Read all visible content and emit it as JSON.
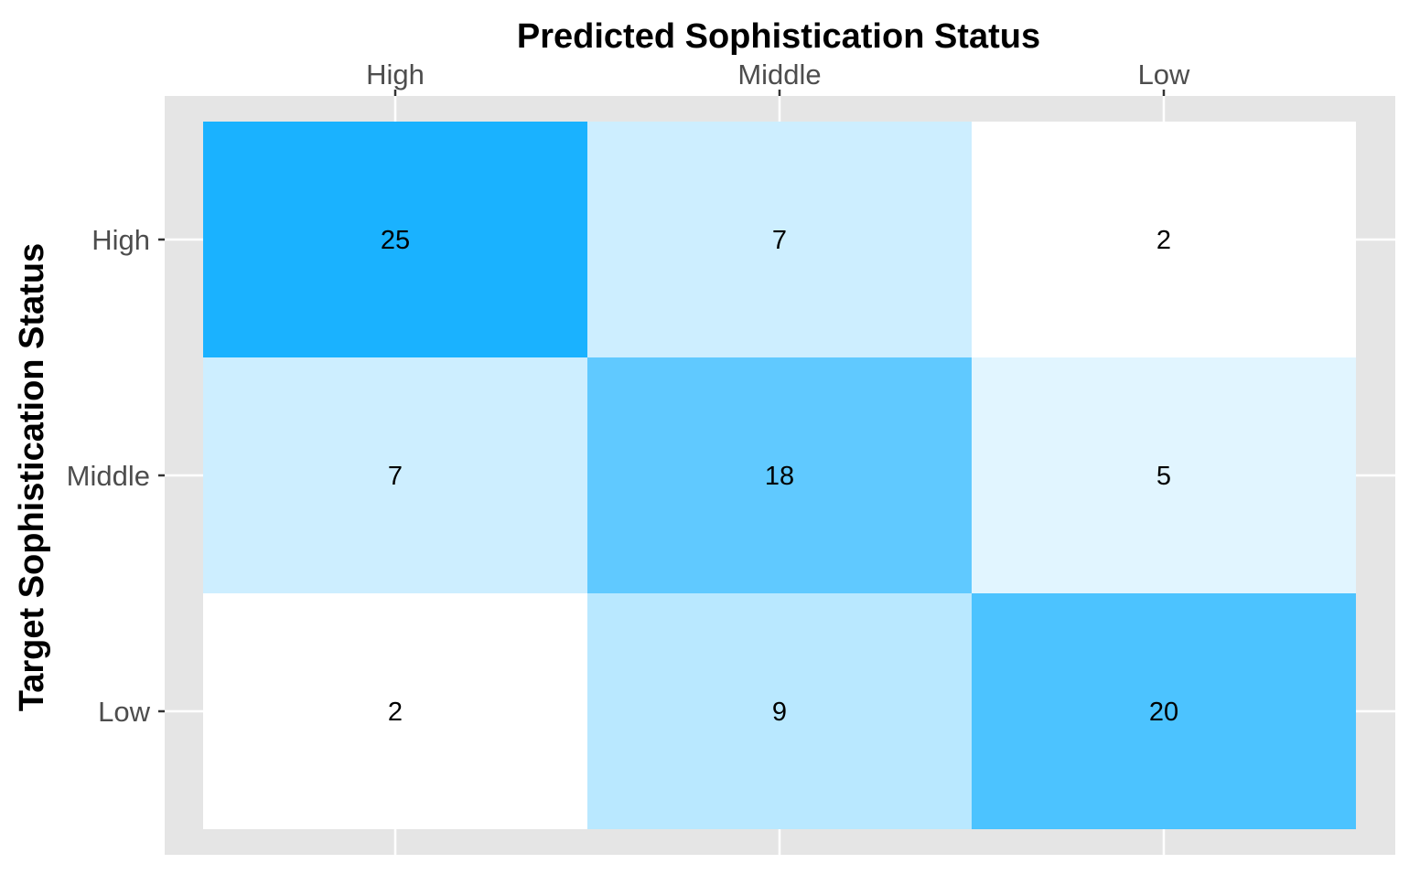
{
  "chart_data": {
    "type": "heatmap",
    "x_title": "Predicted Sophistication Status",
    "y_title": "Target Sophistication Status",
    "x_categories": [
      "High",
      "Middle",
      "Low"
    ],
    "y_categories": [
      "High",
      "Middle",
      "Low"
    ],
    "x_axis_position": "top",
    "values": [
      [
        25,
        7,
        2
      ],
      [
        7,
        18,
        5
      ],
      [
        2,
        9,
        20
      ]
    ],
    "colors": {
      "low": "#ffffff",
      "high": "#1ab2ff",
      "panel_background": "#e5e5e5",
      "grid": "#ffffff",
      "tick_label": "#4d4d4d",
      "title": "#000000"
    },
    "grid": true,
    "legend": "none"
  }
}
